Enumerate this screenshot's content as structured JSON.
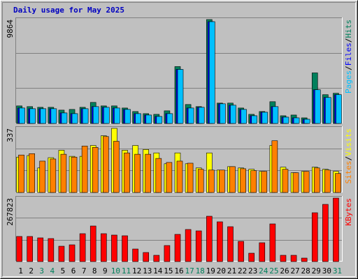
{
  "chart_data": [
    {
      "type": "bar",
      "title": "Daily usage for May 2025",
      "ylim": [
        0,
        9864
      ],
      "yticks": [
        9864
      ],
      "legend_separator": "/",
      "series": [
        {
          "name": "Hits",
          "color": "#00805c",
          "values": [
            1666,
            1600,
            1533,
            1533,
            1266,
            1333,
            1533,
            2000,
            1666,
            1666,
            1466,
            1133,
            933,
            866,
            1200,
            5400,
            1800,
            1600,
            9864,
            1933,
            1933,
            1466,
            866,
            1133,
            2066,
            733,
            800,
            533,
            4800,
            2733,
            2866
          ]
        },
        {
          "name": "Files",
          "color": "#0000ff",
          "values": [
            1466,
            1400,
            1400,
            1400,
            1000,
            933,
            1400,
            1600,
            1533,
            1466,
            1333,
            933,
            800,
            666,
            933,
            5132,
            1466,
            1533,
            9664,
            1866,
            1733,
            1333,
            733,
            1066,
            1600,
            600,
            533,
            400,
            3200,
            2466,
            2733
          ]
        },
        {
          "name": "Pages",
          "color": "#00c0ff",
          "values": [
            1466,
            1400,
            1400,
            1400,
            1000,
            933,
            1400,
            1600,
            1533,
            1466,
            1333,
            933,
            800,
            666,
            933,
            5132,
            1466,
            1533,
            9664,
            1866,
            1733,
            1333,
            733,
            1066,
            1600,
            600,
            533,
            400,
            3200,
            2466,
            2733
          ]
        }
      ]
    },
    {
      "type": "bar",
      "ylim": [
        0,
        337
      ],
      "yticks": [
        337
      ],
      "legend_separator": "/",
      "series": [
        {
          "name": "Visits",
          "color": "#ffff00",
          "values": [
            186,
            194,
            129,
            183,
            222,
            190,
            190,
            247,
            298,
            337,
            222,
            247,
            226,
            208,
            151,
            208,
            151,
            129,
            208,
            118,
            136,
            129,
            122,
            111,
            247,
            133,
            104,
            111,
            133,
            122,
            111
          ]
        },
        {
          "name": "Sites",
          "color": "#ff8000",
          "values": [
            197,
            204,
            165,
            176,
            201,
            186,
            244,
            237,
            294,
            269,
            208,
            201,
            201,
            179,
            158,
            165,
            154,
            122,
            118,
            118,
            136,
            125,
            115,
            111,
            272,
            122,
            104,
            111,
            129,
            118,
            100
          ]
        }
      ]
    },
    {
      "type": "bar",
      "ylim": [
        0,
        267823
      ],
      "yticks": [
        267823
      ],
      "categories": [
        "1",
        "2",
        "3",
        "4",
        "5",
        "6",
        "7",
        "8",
        "9",
        "10",
        "11",
        "12",
        "13",
        "14",
        "15",
        "16",
        "17",
        "18",
        "19",
        "20",
        "21",
        "22",
        "23",
        "24",
        "25",
        "26",
        "27",
        "28",
        "29",
        "30",
        "31"
      ],
      "label_colors": [
        "#000000",
        "#000000",
        "#00805c",
        "#00805c",
        "#000000",
        "#000000",
        "#000000",
        "#000000",
        "#000000",
        "#00805c",
        "#00805c",
        "#000000",
        "#000000",
        "#000000",
        "#000000",
        "#000000",
        "#00805c",
        "#00805c",
        "#000000",
        "#000000",
        "#000000",
        "#000000",
        "#000000",
        "#00805c",
        "#00805c",
        "#000000",
        "#000000",
        "#000000",
        "#000000",
        "#000000",
        "#00805c"
      ],
      "series": [
        {
          "name": "KBytes",
          "color": "#ff0000",
          "values": [
            105948,
            105948,
            100062,
            97119,
            64746,
            70632,
            117720,
            150093,
            117720,
            111834,
            108891,
            52974,
            38259,
            26487,
            67689,
            114777,
            135378,
            129492,
            191295,
            167751,
            147150,
            85347,
            35316,
            79461,
            158922,
            26487,
            26487,
            14715,
            206010,
            241326,
            267823
          ]
        }
      ]
    }
  ]
}
